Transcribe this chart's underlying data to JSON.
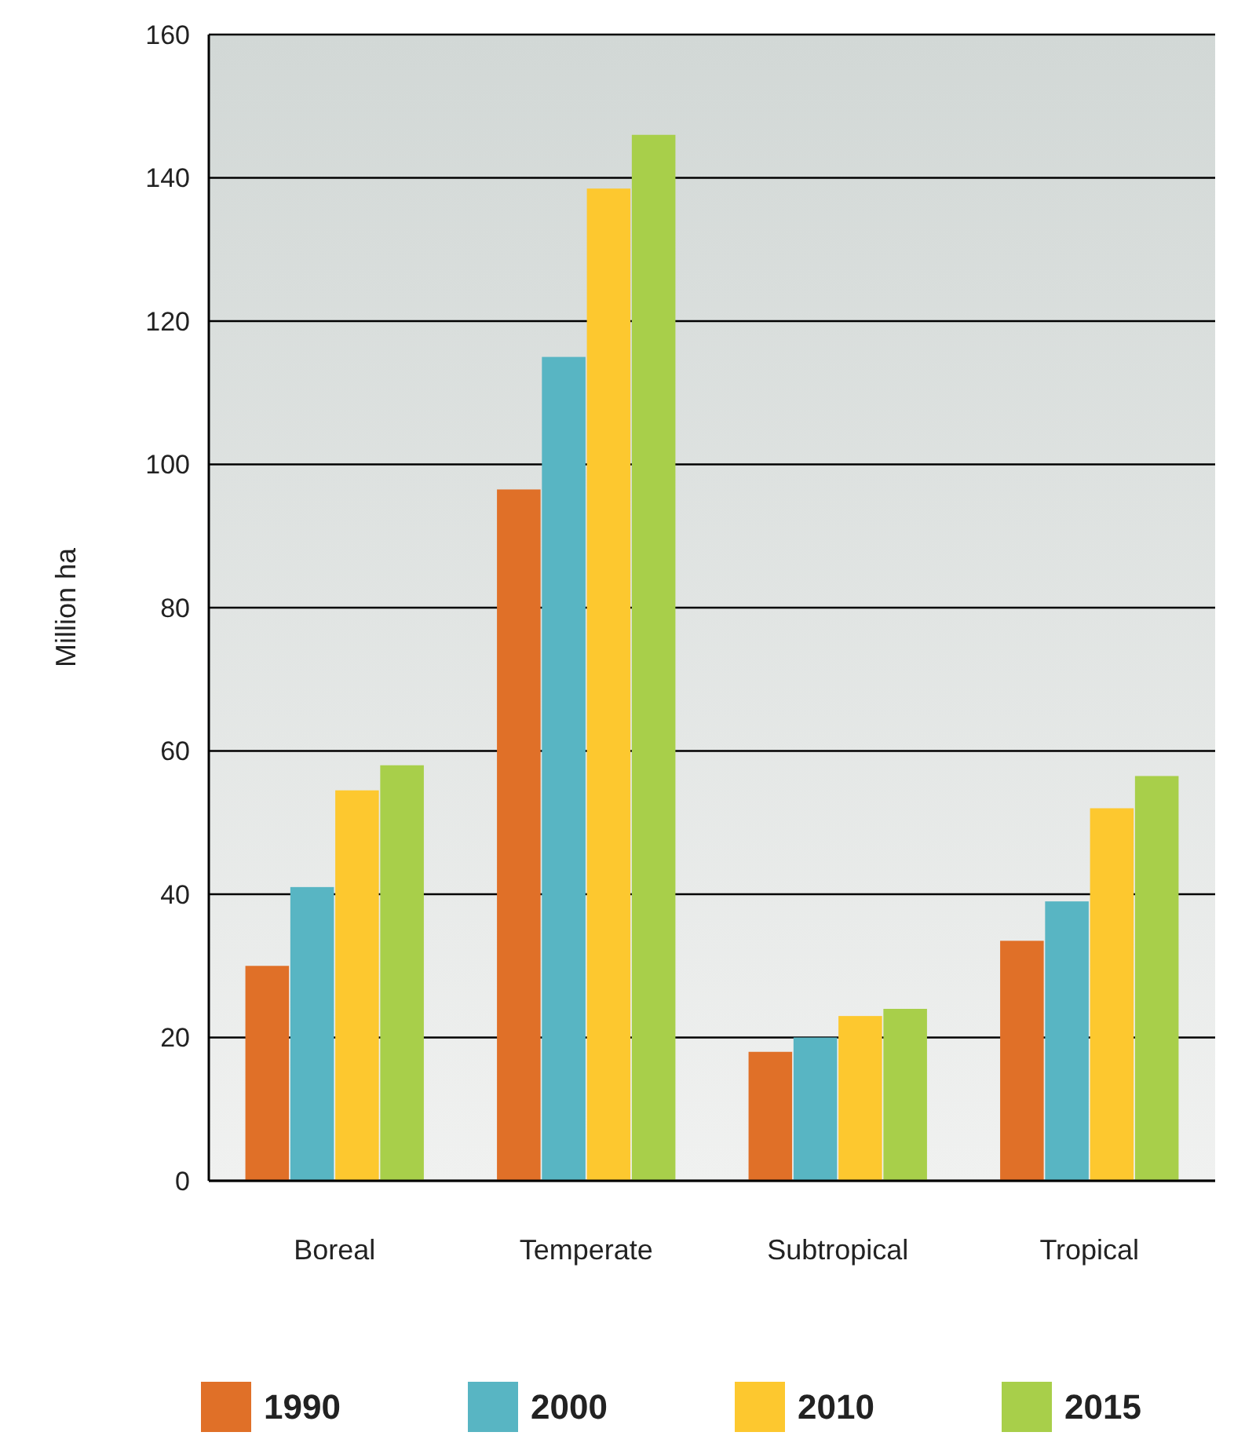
{
  "chart_data": {
    "type": "bar",
    "ylabel": "Million ha",
    "categories": [
      "Boreal",
      "Temperate",
      "Subtropical",
      "Tropical"
    ],
    "series": [
      {
        "name": "1990",
        "color": "#e07028",
        "values": [
          30,
          96.5,
          18,
          33.5
        ]
      },
      {
        "name": "2000",
        "color": "#58b5c3",
        "values": [
          41,
          115,
          20,
          39
        ]
      },
      {
        "name": "2010",
        "color": "#fdc82f",
        "values": [
          54.5,
          138.5,
          23,
          52
        ]
      },
      {
        "name": "2015",
        "color": "#a8cf4a",
        "values": [
          58,
          146,
          24,
          56.5
        ]
      }
    ],
    "ylim": [
      0,
      160
    ],
    "yticks": [
      0,
      20,
      40,
      60,
      80,
      100,
      120,
      140,
      160
    ],
    "grid": "y",
    "legend": "bottom"
  }
}
